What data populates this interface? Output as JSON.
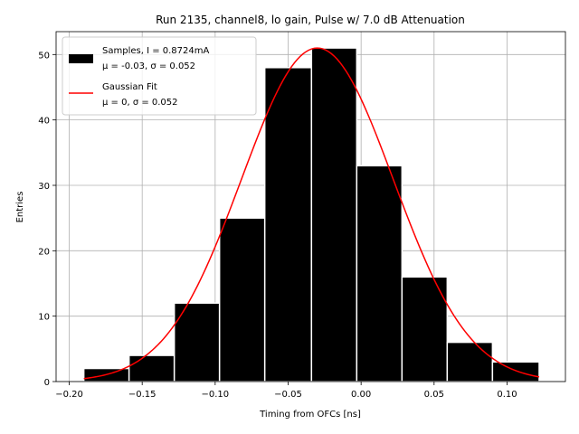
{
  "chart_data": {
    "type": "bar",
    "title": "Run 2135, channel8, lo gain, Pulse w/ 7.0 dB Attenuation",
    "xlabel": "Timing from OFCs [ns]",
    "ylabel": "Entries",
    "xlim": [
      -0.209,
      0.14
    ],
    "ylim": [
      0,
      53.5
    ],
    "xticks": [
      -0.2,
      -0.15,
      -0.1,
      -0.05,
      0.0,
      0.05,
      0.1
    ],
    "xtick_labels": [
      "−0.20",
      "−0.15",
      "−0.10",
      "−0.05",
      "0.00",
      "0.05",
      "0.10"
    ],
    "yticks": [
      0,
      10,
      20,
      30,
      40,
      50
    ],
    "ytick_labels": [
      "0",
      "10",
      "20",
      "30",
      "40",
      "50"
    ],
    "grid": true,
    "legend_position": "top-left",
    "histogram": {
      "name": "Samples, I = 0.8724mA",
      "stats_label": "μ = -0.03, σ = 0.052",
      "color": "#000000",
      "edgecolor": "#ffffff",
      "bins": [
        {
          "x0": -0.19,
          "x1": -0.159,
          "count": 2
        },
        {
          "x0": -0.159,
          "x1": -0.128,
          "count": 4
        },
        {
          "x0": -0.128,
          "x1": -0.097,
          "count": 12
        },
        {
          "x0": -0.097,
          "x1": -0.066,
          "count": 25
        },
        {
          "x0": -0.066,
          "x1": -0.034,
          "count": 48
        },
        {
          "x0": -0.034,
          "x1": -0.003,
          "count": 51
        },
        {
          "x0": -0.003,
          "x1": 0.028,
          "count": 33
        },
        {
          "x0": 0.028,
          "x1": 0.059,
          "count": 16
        },
        {
          "x0": 0.059,
          "x1": 0.09,
          "count": 6
        },
        {
          "x0": 0.09,
          "x1": 0.122,
          "count": 3
        }
      ]
    },
    "fit": {
      "name": "Gaussian Fit",
      "stats_label": "μ = 0, σ = 0.052",
      "color": "#ff0000",
      "amplitude": 51,
      "mean": -0.03,
      "sigma": 0.052,
      "x_range": [
        -0.19,
        0.122
      ]
    }
  }
}
